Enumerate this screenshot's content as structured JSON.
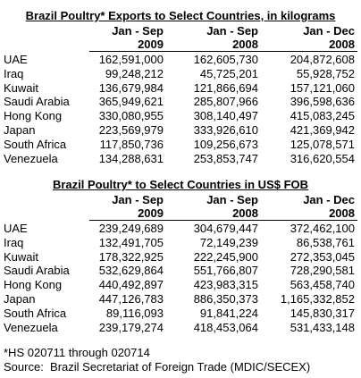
{
  "tables": [
    {
      "title": "Brazil Poultry* Exports to Select Countries, in kilograms",
      "columns": [
        {
          "period": "Jan - Sep",
          "year": "2009"
        },
        {
          "period": "Jan - Sep",
          "year": "2008"
        },
        {
          "period": "Jan - Dec",
          "year": "2008"
        }
      ],
      "rows": [
        {
          "country": "UAE",
          "values": [
            "162,591,000",
            "162,605,730",
            "204,872,608"
          ]
        },
        {
          "country": "Iraq",
          "values": [
            "99,248,212",
            "45,725,201",
            "55,928,752"
          ]
        },
        {
          "country": "Kuwait",
          "values": [
            "136,679,984",
            "121,866,694",
            "157,121,060"
          ]
        },
        {
          "country": "Saudi Arabia",
          "values": [
            "365,949,621",
            "285,807,966",
            "396,598,636"
          ]
        },
        {
          "country": "Hong Kong",
          "values": [
            "330,080,955",
            "308,140,497",
            "415,083,245"
          ]
        },
        {
          "country": "Japan",
          "values": [
            "223,569,979",
            "333,926,610",
            "421,369,942"
          ]
        },
        {
          "country": "South Africa",
          "values": [
            "117,850,736",
            "109,256,673",
            "125,078,571"
          ]
        },
        {
          "country": "Venezuela",
          "values": [
            "134,288,631",
            "253,853,747",
            "316,620,554"
          ]
        }
      ]
    },
    {
      "title": "Brazil Poultry* to Select Countries in US$ FOB",
      "columns": [
        {
          "period": "Jan - Sep",
          "year": "2009"
        },
        {
          "period": "Jan - Sep",
          "year": "2008"
        },
        {
          "period": "Jan - Dec",
          "year": "2008"
        }
      ],
      "rows": [
        {
          "country": "UAE",
          "values": [
            "239,249,689",
            "304,679,447",
            "372,462,100"
          ]
        },
        {
          "country": "Iraq",
          "values": [
            "132,491,705",
            "72,149,239",
            "86,538,761"
          ]
        },
        {
          "country": "Kuwait",
          "values": [
            "178,322,925",
            "222,245,900",
            "272,353,045"
          ]
        },
        {
          "country": "Saudi Arabia",
          "values": [
            "532,629,864",
            "551,766,807",
            "728,290,581"
          ]
        },
        {
          "country": "Hong Kong",
          "values": [
            "440,492,897",
            "423,983,315",
            "563,458,740"
          ]
        },
        {
          "country": "Japan",
          "values": [
            "447,126,783",
            "886,350,373",
            "1,165,332,852"
          ]
        },
        {
          "country": "South Africa",
          "values": [
            "89,116,093",
            "91,841,224",
            "145,830,317"
          ]
        },
        {
          "country": "Venezuela",
          "values": [
            "239,179,274",
            "418,453,064",
            "531,433,148"
          ]
        }
      ]
    }
  ],
  "footnotes": [
    "*HS 020711 through 020714",
    "Source:  Brazil Secretariat of Foreign Trade (MDIC/SECEX)"
  ]
}
